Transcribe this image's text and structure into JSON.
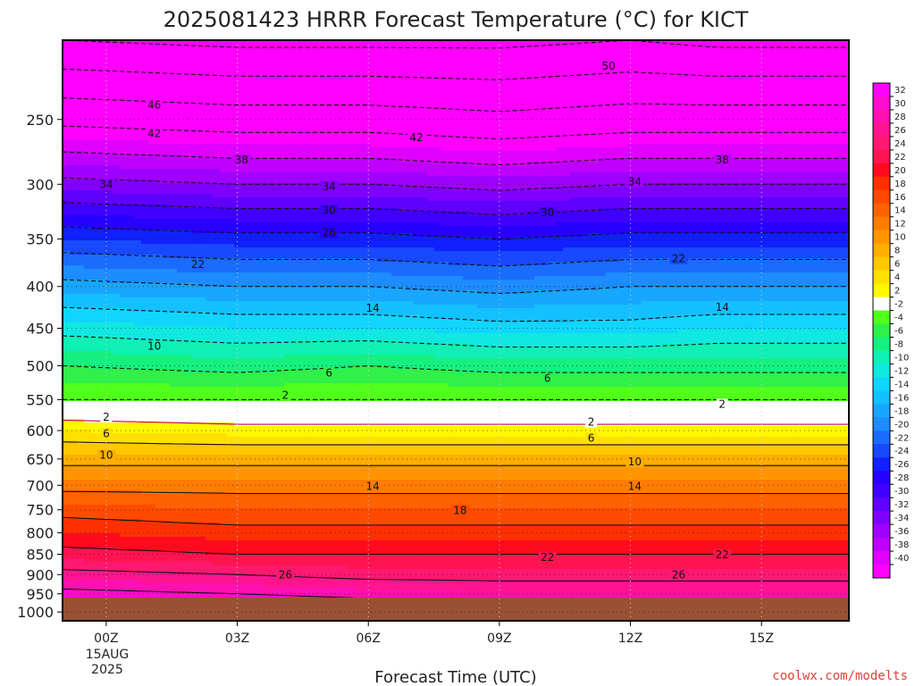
{
  "chart_data": {
    "type": "heatmap",
    "title": "2025081423 HRRR Forecast Temperature (°C) for KICT",
    "xlabel": "Forecast Time (UTC)",
    "ylabel": "",
    "x_ticks": [
      "00Z",
      "03Z",
      "06Z",
      "09Z",
      "12Z",
      "15Z"
    ],
    "x_date_label": [
      "15AUG",
      "2025"
    ],
    "x_range_hours": [
      -1,
      17
    ],
    "y_ticks": [
      250,
      300,
      350,
      400,
      450,
      500,
      550,
      600,
      650,
      700,
      750,
      800,
      850,
      900,
      950,
      1000
    ],
    "y_range_hPa": [
      200,
      1025
    ],
    "y_scale": "log",
    "grid": "dotted",
    "surface_pressure_hPa": 960,
    "colorbar_levels": [
      32,
      30,
      28,
      26,
      24,
      22,
      20,
      18,
      16,
      14,
      12,
      10,
      8,
      6,
      4,
      2,
      -2,
      -4,
      -6,
      -8,
      -10,
      -12,
      -14,
      -16,
      -18,
      -20,
      -22,
      -24,
      -26,
      -28,
      -30,
      -32,
      -34,
      -36,
      -38,
      -40
    ],
    "colorbar_colors": [
      "#ff00ff",
      "#ff0cd0",
      "#ff10b0",
      "#ff1490",
      "#ff1870",
      "#ff1450",
      "#ff0a1e",
      "#ff3000",
      "#ff4a00",
      "#ff6200",
      "#ff7c00",
      "#ff9600",
      "#ffae00",
      "#ffc800",
      "#ffe000",
      "#fff800",
      "#ffffff",
      "#50ff1a",
      "#30f04a",
      "#16f080",
      "#10f0b4",
      "#10e8e0",
      "#10d6ff",
      "#14c0ff",
      "#18a6ff",
      "#1c8cff",
      "#1a6cff",
      "#1848ff",
      "#1020ff",
      "#2800ff",
      "#4000ff",
      "#6000ff",
      "#8000ff",
      "#a000ff",
      "#c000ff",
      "#e000ff",
      "#ff00ff"
    ],
    "profiles_pressure_hPa": [
      1000,
      950,
      900,
      850,
      800,
      750,
      700,
      650,
      600,
      550,
      500,
      450,
      400,
      350,
      300,
      250,
      200
    ],
    "profiles": [
      {
        "x": -1,
        "temperature": [
          35,
          31,
          27,
          23,
          20,
          17,
          13,
          9,
          4,
          -2,
          -6,
          -11,
          -17,
          -24,
          -33,
          -43,
          -54
        ]
      },
      {
        "x": 3,
        "temperature": [
          34,
          30,
          26,
          22,
          19,
          16,
          13,
          9,
          3,
          -2,
          -7,
          -12,
          -18,
          -25,
          -34,
          -44,
          -55
        ]
      },
      {
        "x": 6,
        "temperature": [
          33,
          29,
          25,
          22,
          19,
          16,
          13,
          9,
          3,
          -2,
          -6,
          -12,
          -18,
          -25,
          -34,
          -44,
          -55
        ]
      },
      {
        "x": 9,
        "temperature": [
          32,
          28,
          25,
          22,
          19,
          16,
          13,
          9,
          3,
          -2,
          -7,
          -13,
          -19,
          -26,
          -35,
          -45,
          -55
        ]
      },
      {
        "x": 12,
        "temperature": [
          32,
          28,
          25,
          22,
          19,
          16,
          13,
          9,
          3,
          -2,
          -7,
          -13,
          -18,
          -25,
          -34,
          -44,
          -54
        ]
      },
      {
        "x": 14,
        "temperature": [
          31,
          28,
          25,
          22,
          19,
          16,
          13,
          9,
          3,
          -2,
          -7,
          -12,
          -18,
          -25,
          -34,
          -44,
          -55
        ]
      },
      {
        "x": 17,
        "temperature": [
          32,
          28,
          25,
          22,
          19,
          16,
          13,
          9,
          3,
          -2,
          -7,
          -12,
          -18,
          -25,
          -34,
          -44,
          -55
        ]
      }
    ],
    "contour_labels": [
      {
        "text": "50",
        "x": 11.5,
        "p": 215
      },
      {
        "text": "46",
        "x": 1.1,
        "p": 240
      },
      {
        "text": "42",
        "x": 1.1,
        "p": 260
      },
      {
        "text": "42",
        "x": 7.1,
        "p": 263
      },
      {
        "text": "38",
        "x": 3.1,
        "p": 280
      },
      {
        "text": "38",
        "x": 14.1,
        "p": 280
      },
      {
        "text": "34",
        "x": 0.0,
        "p": 300
      },
      {
        "text": "34",
        "x": 5.1,
        "p": 302
      },
      {
        "text": "34",
        "x": 12.1,
        "p": 298
      },
      {
        "text": "30",
        "x": 5.1,
        "p": 323
      },
      {
        "text": "30",
        "x": 10.1,
        "p": 325
      },
      {
        "text": "26",
        "x": 5.1,
        "p": 344
      },
      {
        "text": "22",
        "x": 2.1,
        "p": 376
      },
      {
        "text": "22",
        "x": 13.1,
        "p": 370
      },
      {
        "text": "14",
        "x": 6.1,
        "p": 425
      },
      {
        "text": "14",
        "x": 14.1,
        "p": 424
      },
      {
        "text": "10",
        "x": 1.1,
        "p": 473
      },
      {
        "text": "6",
        "x": 5.1,
        "p": 510
      },
      {
        "text": "6",
        "x": 10.1,
        "p": 518
      },
      {
        "text": "2",
        "x": 4.1,
        "p": 543
      },
      {
        "text": "2",
        "x": 14.1,
        "p": 557
      },
      {
        "text": "2",
        "x": 0.0,
        "p": 578
      },
      {
        "text": "2",
        "x": 11.1,
        "p": 586
      },
      {
        "text": "6",
        "x": 0.0,
        "p": 605
      },
      {
        "text": "6",
        "x": 11.1,
        "p": 613
      },
      {
        "text": "10",
        "x": 0.0,
        "p": 643
      },
      {
        "text": "10",
        "x": 12.1,
        "p": 655
      },
      {
        "text": "14",
        "x": 6.1,
        "p": 702
      },
      {
        "text": "14",
        "x": 12.1,
        "p": 702
      },
      {
        "text": "18",
        "x": 8.1,
        "p": 751
      },
      {
        "text": "22",
        "x": 10.1,
        "p": 857
      },
      {
        "text": "22",
        "x": 14.1,
        "p": 851
      },
      {
        "text": "26",
        "x": 4.1,
        "p": 901
      },
      {
        "text": "26",
        "x": 13.1,
        "p": 901
      }
    ]
  },
  "credit": "coolwx.com/modelts"
}
